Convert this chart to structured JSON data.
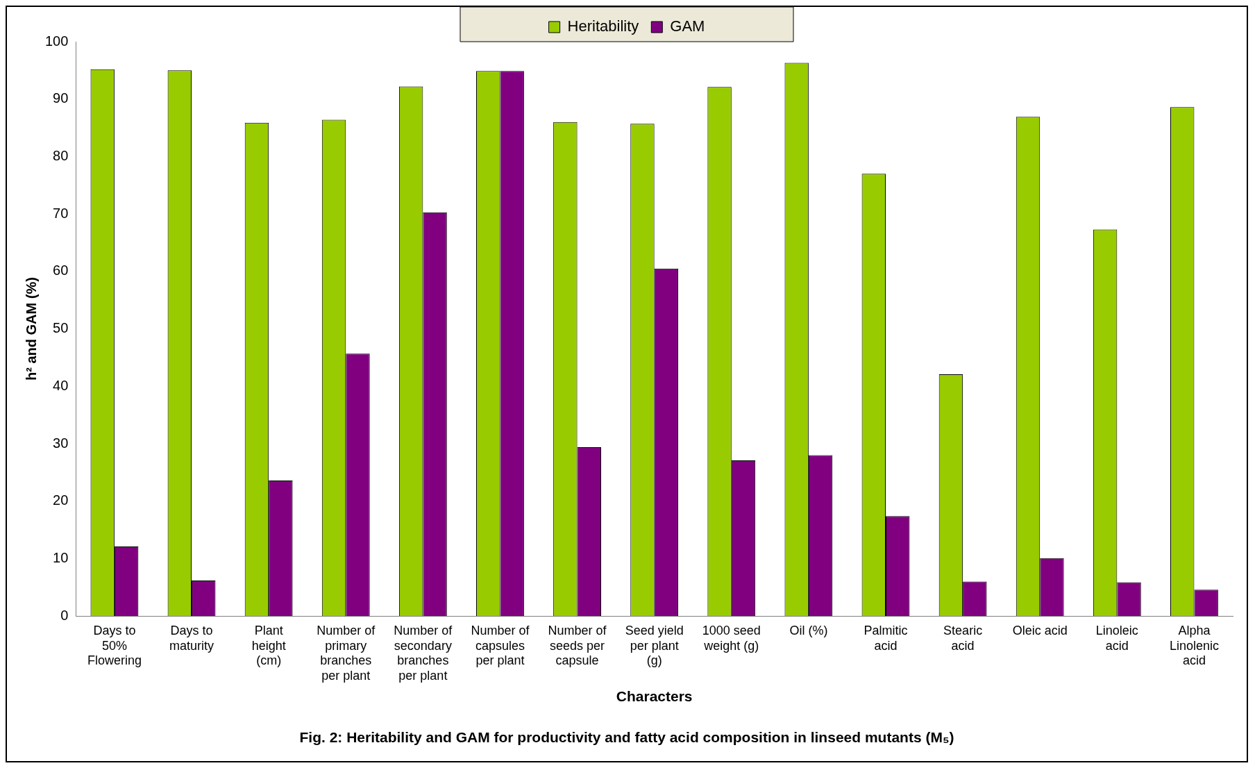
{
  "chart_data": {
    "type": "bar",
    "title": "Fig. 2: Heritability and GAM for productivity and fatty acid composition in linseed mutants (M₅)",
    "xlabel": "Characters",
    "ylabel": "h² and GAM (%)",
    "categories": [
      "Days to 50% Flowering",
      "Days to maturity",
      "Plant height (cm)",
      "Number of primary branches per plant",
      "Number of secondary branches per plant",
      "Number of capsules per plant",
      "Number of seeds per capsule",
      "Seed yield per plant (g)",
      "1000 seed weight (g)",
      "Oil (%)",
      "Palmitic acid",
      "Stearic acid",
      "Oleic acid",
      "Linoleic acid",
      "Alpha Linolenic acid"
    ],
    "series": [
      {
        "name": "Heritability",
        "color": "#99cc00",
        "values": [
          95.2,
          95.0,
          85.9,
          86.4,
          92.2,
          94.9,
          86.0,
          85.7,
          92.1,
          96.3,
          77.0,
          42.1,
          86.9,
          67.3,
          88.6
        ]
      },
      {
        "name": "GAM",
        "color": "#800080",
        "values": [
          12.1,
          6.2,
          23.6,
          45.7,
          70.3,
          94.9,
          29.4,
          60.5,
          27.1,
          28.0,
          17.4,
          6.0,
          10.1,
          5.9,
          4.6
        ]
      }
    ],
    "ylim": [
      0,
      100
    ],
    "yticks": [
      0,
      10,
      20,
      30,
      40,
      50,
      60,
      70,
      80,
      90,
      100
    ],
    "grid": false,
    "legend": "top"
  }
}
